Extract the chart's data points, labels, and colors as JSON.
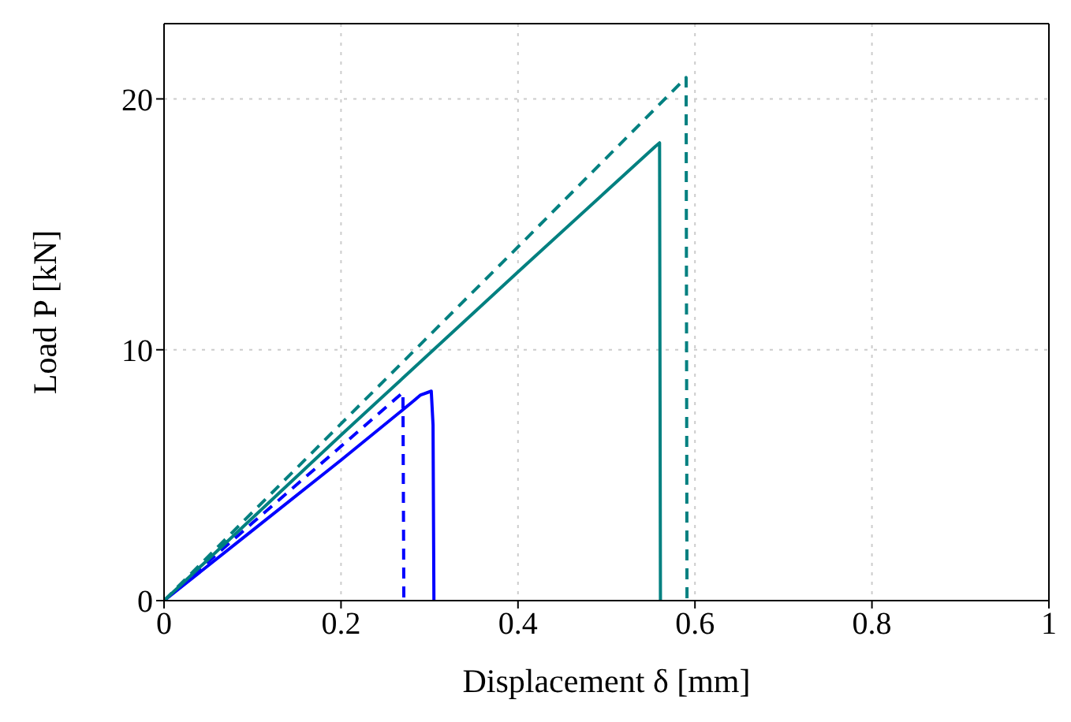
{
  "chart_data": {
    "type": "line",
    "xlabel": "Displacement δ [mm]",
    "ylabel": "Load P [kN]",
    "xlim": [
      0,
      1
    ],
    "xticks": [
      0,
      0.2,
      0.4,
      0.6,
      0.8,
      1
    ],
    "ylim": [
      0,
      23
    ],
    "yticks": [
      0,
      10,
      20
    ],
    "grid": true,
    "legend": false,
    "marker": "none",
    "series": [
      {
        "color": "#0000ff",
        "line_style": "solid",
        "x": [
          0,
          0.1,
          0.2,
          0.28,
          0.29,
          0.302,
          0.304,
          0.305
        ],
        "values": [
          0,
          2.8,
          5.6,
          7.9,
          8.2,
          8.35,
          7,
          0
        ]
      },
      {
        "color": "#0000ff",
        "line_style": "dashed",
        "x": [
          0,
          0.1,
          0.2,
          0.27,
          0.271
        ],
        "values": [
          0,
          3.1,
          6.15,
          8.3,
          0
        ]
      },
      {
        "color": "#008080",
        "line_style": "solid",
        "x": [
          0,
          0.2,
          0.4,
          0.555,
          0.56,
          0.561
        ],
        "values": [
          0,
          6.6,
          13.1,
          18.1,
          18.25,
          0
        ]
      },
      {
        "color": "#008080",
        "line_style": "dashed",
        "x": [
          0,
          0.2,
          0.4,
          0.59,
          0.591
        ],
        "values": [
          0,
          7.05,
          14.1,
          20.85,
          0
        ]
      }
    ]
  }
}
